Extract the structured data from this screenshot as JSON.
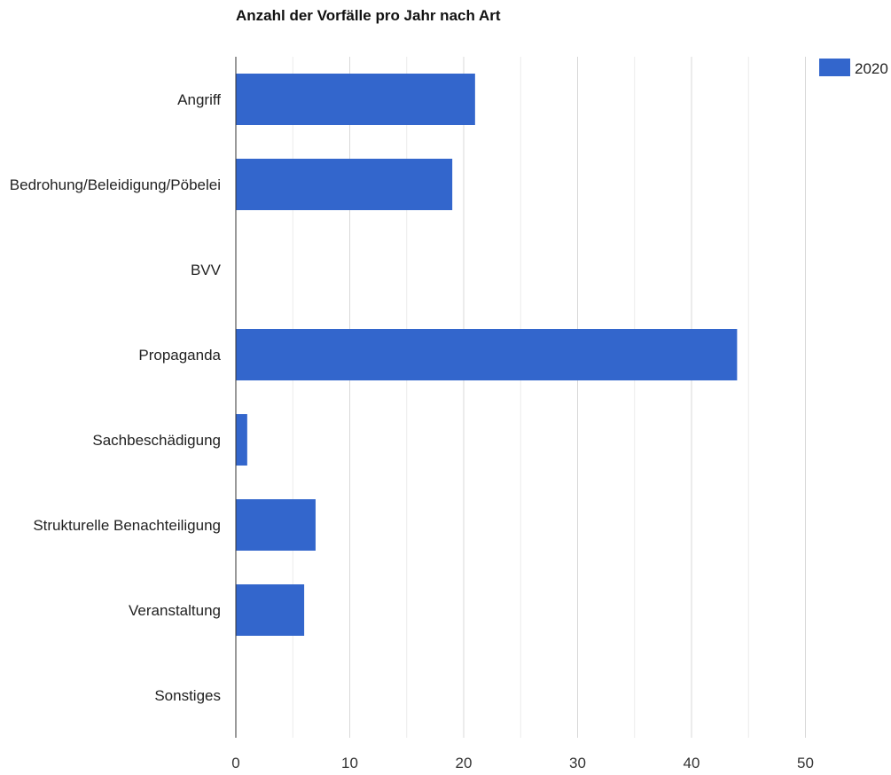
{
  "chart_data": {
    "type": "bar",
    "orientation": "horizontal",
    "title": "Anzahl der Vorfälle pro Jahr nach Art",
    "xlabel": "",
    "ylabel": "",
    "categories": [
      "Angriff",
      "Bedrohung/Beleidigung/Pöbelei",
      "BVV",
      "Propaganda",
      "Sachbeschädigung",
      "Strukturelle Benachteiligung",
      "Veranstaltung",
      "Sonstiges"
    ],
    "series": [
      {
        "name": "2020",
        "color": "#3366cc",
        "values": [
          21,
          19,
          0,
          44,
          1,
          7,
          6,
          0
        ]
      }
    ],
    "xlim": [
      0,
      50
    ],
    "x_ticks": [
      0,
      10,
      20,
      30,
      40,
      50
    ],
    "grid": true,
    "legend_position": "top-right"
  }
}
